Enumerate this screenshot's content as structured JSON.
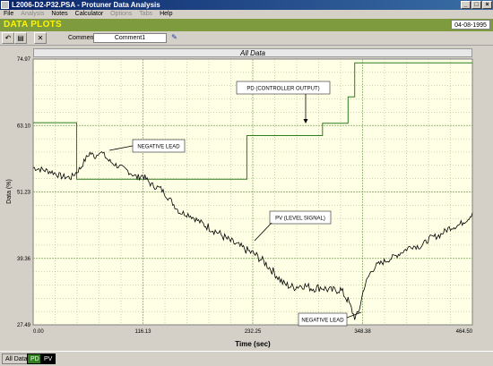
{
  "window": {
    "title": "L2006-D2-P32.PSA - Protuner Data  Analysis"
  },
  "menu": [
    {
      "label": "File",
      "disabled": false
    },
    {
      "label": "Analysis",
      "disabled": true
    },
    {
      "label": "Notes",
      "disabled": false
    },
    {
      "label": "Calculator",
      "disabled": false
    },
    {
      "label": "Options",
      "disabled": true
    },
    {
      "label": "Tabs",
      "disabled": true
    },
    {
      "label": "Help",
      "disabled": false
    }
  ],
  "plots_bar": {
    "label": "DATA PLOTS",
    "date": "04-08-1995"
  },
  "toolbar": {
    "comment_label": "Comment",
    "comment_value": "Comment1"
  },
  "plot": {
    "header": "All Data"
  },
  "annotations": {
    "pd": "PD (CONTROLLER OUTPUT)",
    "neg1": "NEGATIVE LEAD",
    "pv": "PV (LEVEL SIGNAL)",
    "neg2": "NEGATIVE LEAD"
  },
  "tabs": {
    "all": "All Data",
    "pd": "PD",
    "pv": "PV"
  },
  "colors": {
    "pd": "#2e7d1e",
    "pv": "#000000",
    "plot_bg": "#ffffe5",
    "grid": "#7aa05a"
  },
  "chart_data": {
    "type": "line",
    "title": "All Data",
    "xlabel": "Time (sec)",
    "ylabel": "Data (%)",
    "xlim": [
      0,
      464.5
    ],
    "ylim": [
      27.49,
      74.97
    ],
    "x_ticks": [
      "0.00",
      "116.13",
      "232.25",
      "348.38",
      "464.50"
    ],
    "y_ticks": [
      "27.49",
      "39.36",
      "51.23",
      "63.10",
      "74.97"
    ],
    "grid": true,
    "series": [
      {
        "name": "PD (CONTROLLER OUTPUT)",
        "color": "#2e7d1e",
        "x": [
          0,
          46,
          46,
          226,
          226,
          306,
          306,
          333,
          333,
          340,
          340,
          464.5
        ],
        "y": [
          63.6,
          63.6,
          53.5,
          53.5,
          61.3,
          61.3,
          63.5,
          63.5,
          68.2,
          68.2,
          74.3,
          74.3
        ]
      },
      {
        "name": "PV (LEVEL SIGNAL)",
        "color": "#000000",
        "x": [
          0,
          10,
          20,
          30,
          40,
          50,
          55,
          60,
          66,
          70,
          75,
          80,
          90,
          100,
          110,
          116,
          125,
          135,
          145,
          155,
          165,
          175,
          185,
          195,
          205,
          215,
          225,
          235,
          245,
          255,
          265,
          275,
          285,
          295,
          305,
          315,
          325,
          333,
          340,
          344,
          350,
          356,
          362,
          370,
          380,
          390,
          400,
          410,
          420,
          430,
          440,
          450,
          460,
          464.5
        ],
        "y": [
          55.6,
          55.2,
          54.8,
          54.0,
          53.8,
          55.5,
          57.0,
          58.2,
          57.5,
          58.6,
          57.8,
          56.8,
          55.8,
          55.0,
          53.8,
          54.2,
          52.5,
          51.8,
          49.8,
          47.6,
          47.2,
          46.0,
          45.0,
          44.0,
          42.8,
          41.8,
          40.9,
          40.0,
          38.6,
          36.8,
          34.8,
          34.2,
          34.6,
          34.0,
          34.2,
          33.6,
          33.8,
          31.8,
          28.8,
          29.6,
          34.2,
          36.6,
          38.0,
          38.7,
          39.5,
          40.5,
          41.6,
          41.5,
          43.0,
          43.5,
          44.8,
          45.3,
          46.5,
          47.5
        ]
      }
    ]
  }
}
